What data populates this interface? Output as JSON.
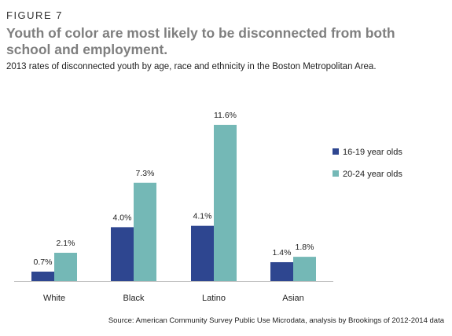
{
  "figure_label": "FIGURE 7",
  "source_note": "Source: American Community Survey Public Use Microdata, analysis by Brookings of 2012-2014 data",
  "chart_data": {
    "type": "bar",
    "title": "Youth of color are most likely to be disconnected from both school and employment.",
    "subtitle": "2013 rates of disconnected youth by age, race and ethnicity in the Boston Metropolitan Area.",
    "categories": [
      "White",
      "Black",
      "Latino",
      "Asian"
    ],
    "series": [
      {
        "name": "16-19 year olds",
        "color": "#2e4690",
        "values": [
          0.7,
          4.0,
          4.1,
          1.4
        ],
        "labels": [
          "0.7%",
          "4.0%",
          "4.1%",
          "1.4%"
        ]
      },
      {
        "name": "20-24 year olds",
        "color": "#74b8b6",
        "values": [
          2.1,
          7.3,
          11.6,
          1.8
        ],
        "labels": [
          "2.1%",
          "7.3%",
          "11.6%",
          "1.8%"
        ]
      }
    ],
    "ylim": [
      0,
      11.6
    ],
    "grid": false,
    "legend_position": "right"
  }
}
